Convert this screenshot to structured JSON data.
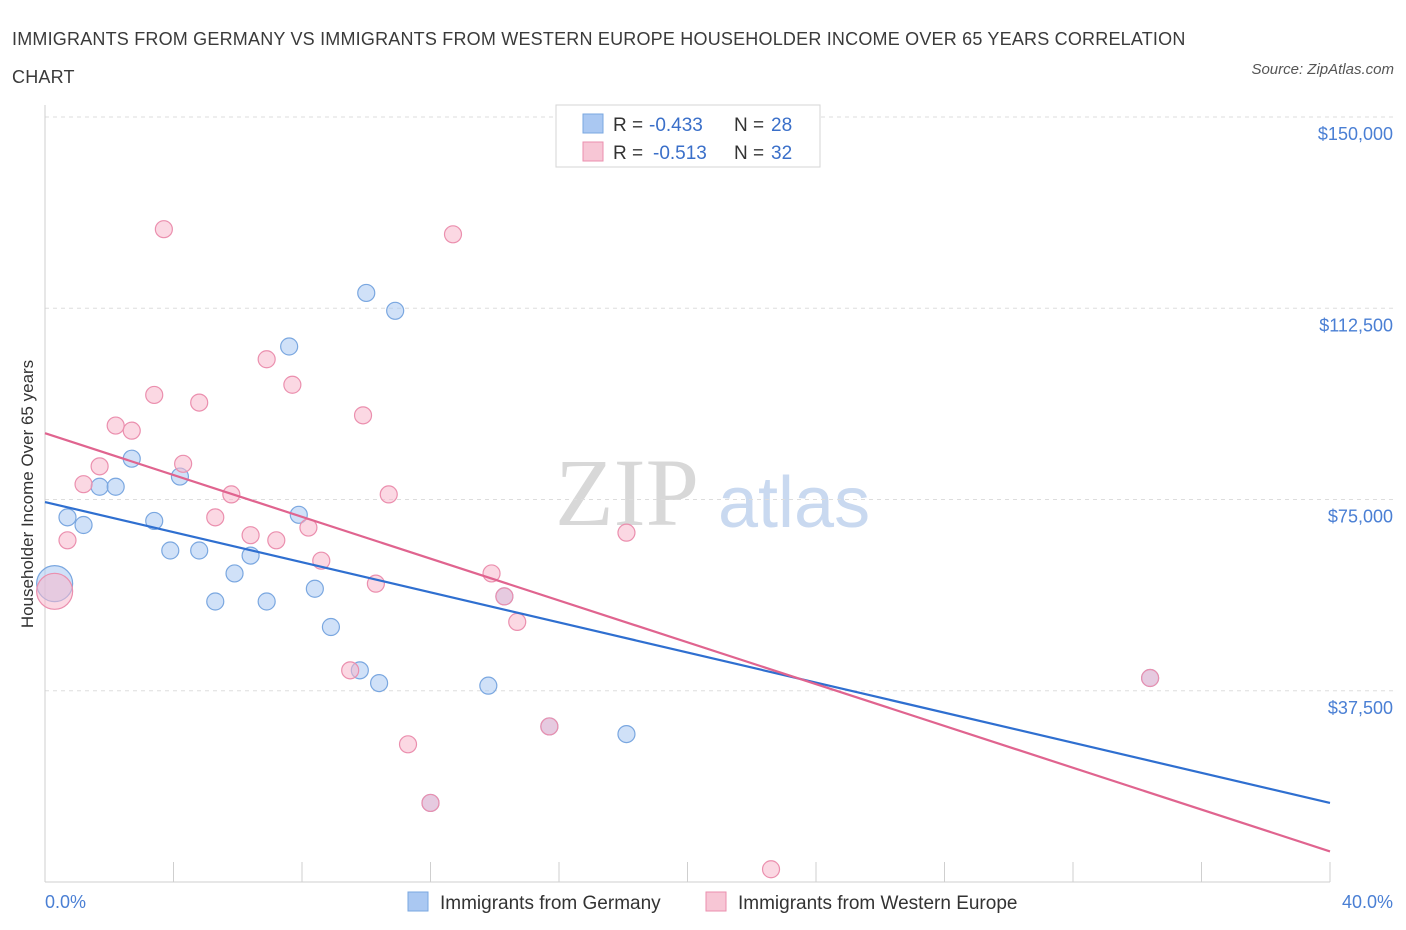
{
  "title": "IMMIGRANTS FROM GERMANY VS IMMIGRANTS FROM WESTERN EUROPE HOUSEHOLDER INCOME OVER 65 YEARS CORRELATION CHART",
  "source": "Source: ZipAtlas.com",
  "watermark": {
    "zip": "ZIP",
    "atlas": "atlas"
  },
  "colors": {
    "germany_fill": "#aac8f2",
    "germany_stroke": "#7aa7e0",
    "germany_line": "#2f6fd0",
    "western_fill": "#f7b8cc",
    "western_stroke": "#eb8fae",
    "western_line": "#e0648f",
    "tick_text": "#4a7fd4",
    "grid": "#dddddd"
  },
  "legend": {
    "rows": [
      {
        "r_label": "R =",
        "r_value": "-0.433",
        "n_label": "N =",
        "n_value": "28"
      },
      {
        "r_label": "R =",
        "r_value": "-0.513",
        "n_label": "N =",
        "n_value": "32"
      }
    ]
  },
  "chart_data": {
    "type": "scatter",
    "title": "IMMIGRANTS FROM GERMANY VS IMMIGRANTS FROM WESTERN EUROPE HOUSEHOLDER INCOME OVER 65 YEARS CORRELATION CHART",
    "xlabel": "",
    "ylabel": "Householder Income Over 65 years",
    "xlim": [
      0,
      40
    ],
    "ylim": [
      0,
      150000
    ],
    "x_tick_labels": [
      "0.0%",
      "40.0%"
    ],
    "y_ticks": [
      37500,
      75000,
      112500,
      150000
    ],
    "y_tick_labels": [
      "$37,500",
      "$75,000",
      "$112,500",
      "$150,000"
    ],
    "legend_position": "top-center",
    "series": [
      {
        "name": "Immigrants from Germany",
        "r": -0.433,
        "n": 28,
        "trend": [
          [
            0,
            74500
          ],
          [
            40,
            15500
          ]
        ],
        "points": [
          {
            "x": 0.3,
            "y": 58500,
            "size": "large"
          },
          {
            "x": 0.7,
            "y": 71500
          },
          {
            "x": 1.2,
            "y": 70000
          },
          {
            "x": 1.7,
            "y": 77500
          },
          {
            "x": 2.2,
            "y": 77500
          },
          {
            "x": 2.7,
            "y": 83000
          },
          {
            "x": 3.4,
            "y": 70800
          },
          {
            "x": 3.9,
            "y": 65000
          },
          {
            "x": 4.2,
            "y": 79500
          },
          {
            "x": 4.8,
            "y": 65000
          },
          {
            "x": 5.3,
            "y": 55000
          },
          {
            "x": 5.9,
            "y": 60500
          },
          {
            "x": 6.4,
            "y": 64000
          },
          {
            "x": 6.9,
            "y": 55000
          },
          {
            "x": 7.6,
            "y": 105000
          },
          {
            "x": 7.9,
            "y": 72000
          },
          {
            "x": 8.4,
            "y": 57500
          },
          {
            "x": 8.9,
            "y": 50000
          },
          {
            "x": 9.8,
            "y": 41500
          },
          {
            "x": 10.0,
            "y": 115500
          },
          {
            "x": 10.4,
            "y": 39000
          },
          {
            "x": 10.9,
            "y": 112000
          },
          {
            "x": 13.8,
            "y": 38500
          },
          {
            "x": 14.3,
            "y": 56000
          },
          {
            "x": 15.7,
            "y": 30500
          },
          {
            "x": 12.0,
            "y": 15500
          },
          {
            "x": 18.1,
            "y": 29000
          },
          {
            "x": 34.4,
            "y": 40000
          }
        ]
      },
      {
        "name": "Immigrants from Western Europe",
        "r": -0.513,
        "n": 32,
        "trend": [
          [
            0,
            88000
          ],
          [
            40,
            6000
          ]
        ],
        "points": [
          {
            "x": 0.3,
            "y": 57000,
            "size": "large"
          },
          {
            "x": 0.7,
            "y": 67000
          },
          {
            "x": 1.2,
            "y": 78000
          },
          {
            "x": 1.7,
            "y": 81500
          },
          {
            "x": 2.2,
            "y": 89500
          },
          {
            "x": 2.7,
            "y": 88500
          },
          {
            "x": 3.4,
            "y": 95500
          },
          {
            "x": 3.7,
            "y": 128000
          },
          {
            "x": 4.3,
            "y": 82000
          },
          {
            "x": 4.8,
            "y": 94000
          },
          {
            "x": 5.3,
            "y": 71500
          },
          {
            "x": 5.8,
            "y": 76000
          },
          {
            "x": 6.4,
            "y": 68000
          },
          {
            "x": 6.9,
            "y": 102500
          },
          {
            "x": 7.2,
            "y": 67000
          },
          {
            "x": 7.7,
            "y": 97500
          },
          {
            "x": 8.2,
            "y": 69500
          },
          {
            "x": 8.6,
            "y": 63000
          },
          {
            "x": 9.5,
            "y": 41500
          },
          {
            "x": 9.9,
            "y": 91500
          },
          {
            "x": 10.3,
            "y": 58500
          },
          {
            "x": 10.7,
            "y": 76000
          },
          {
            "x": 11.3,
            "y": 27000
          },
          {
            "x": 12.0,
            "y": 15500
          },
          {
            "x": 12.7,
            "y": 127000
          },
          {
            "x": 13.9,
            "y": 60500
          },
          {
            "x": 14.3,
            "y": 56000
          },
          {
            "x": 14.7,
            "y": 51000
          },
          {
            "x": 15.7,
            "y": 30500
          },
          {
            "x": 18.1,
            "y": 68500
          },
          {
            "x": 22.6,
            "y": 2500
          },
          {
            "x": 34.4,
            "y": 40000
          }
        ]
      }
    ]
  }
}
